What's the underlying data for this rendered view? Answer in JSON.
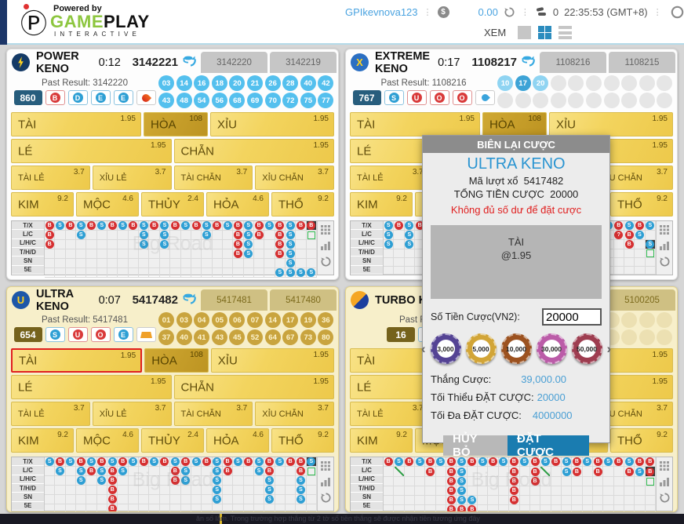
{
  "topbar": {
    "powered_by": "Powered by",
    "brand_game": "GAME",
    "brand_play": "PLAY",
    "brand_sub": "INTERACTIVE",
    "logo_glyph": "Ⓟ",
    "username": "GPIkevnova123",
    "balance": "0.00",
    "bet_count": "0",
    "time": "22:35:53 (GMT+8)",
    "view_label": "XEM"
  },
  "marquee": "ăn số lắm. Trong trường hợp thắng từ 2 tờ số tiền thắng sẽ được nhận tiền tương ứng đây",
  "road_labels": [
    "T/X",
    "L/C",
    "L/H/C",
    "T/H/D",
    "SN",
    "5E"
  ],
  "road_watermark": "Big Road",
  "bet_labels": {
    "tai": "TÀI",
    "hoa": "HÒA",
    "xiu": "XỈU",
    "le": "LÉ",
    "chan": "CHẴN",
    "tai_le": "TÀI LẺ",
    "xiu_le": "XỈU LẺ",
    "tai_chan": "TÀI CHẴN",
    "xiu_chan": "XỈU CHẴN",
    "kim": "KIM",
    "moc": "MỘC",
    "thuy": "THỦY",
    "hoa_e": "HỎA",
    "tho": "THỔ"
  },
  "odds": {
    "tai": "1.95",
    "hoa": "108",
    "xiu": "1.95",
    "le": "1.95",
    "chan": "1.95",
    "tai_le": "3.7",
    "xiu_le": "3.7",
    "tai_chan": "3.7",
    "xiu_chan": "3.7",
    "kim": "9.2",
    "moc": "4.6",
    "thuy": "2.4",
    "hoa_e": "4.6",
    "tho": "9.2"
  },
  "panels": [
    {
      "key": "power-keno",
      "name": "POWER KENO",
      "icon": {
        "bg": "#143a66",
        "kind": "bolt",
        "text": ""
      },
      "timer": "0:12",
      "current": "3142221",
      "tabs": [
        "3142220",
        "3142219"
      ],
      "past_label": "Past Result:",
      "past_result": "3142220",
      "score": "860",
      "score_bg": "#275d7d",
      "badges": [
        {
          "t": "B",
          "c": "red"
        },
        {
          "t": "D",
          "c": "blue"
        },
        {
          "t": "E",
          "c": "blue"
        },
        {
          "t": "E",
          "c": "blue"
        }
      ],
      "element": "flame",
      "gold": false,
      "selected_bet": "",
      "numbers": [
        {
          "v": "03",
          "k": "blue"
        },
        {
          "v": "14",
          "k": "blue"
        },
        {
          "v": "16",
          "k": "blue"
        },
        {
          "v": "18",
          "k": "blue"
        },
        {
          "v": "20",
          "k": "blue"
        },
        {
          "v": "21",
          "k": "blue"
        },
        {
          "v": "26",
          "k": "blue"
        },
        {
          "v": "28",
          "k": "blue"
        },
        {
          "v": "40",
          "k": "blue"
        },
        {
          "v": "42",
          "k": "blue"
        },
        {
          "v": "43",
          "k": "blue"
        },
        {
          "v": "48",
          "k": "blue"
        },
        {
          "v": "54",
          "k": "blue"
        },
        {
          "v": "56",
          "k": "blue"
        },
        {
          "v": "68",
          "k": "blue"
        },
        {
          "v": "69",
          "k": "blue"
        },
        {
          "v": "70",
          "k": "blue"
        },
        {
          "v": "72",
          "k": "blue"
        },
        {
          "v": "75",
          "k": "blue"
        },
        {
          "v": "77",
          "k": "blue"
        }
      ],
      "road": [
        [
          "B",
          "S",
          "B",
          "S",
          "B",
          "S",
          "B",
          "S",
          "B",
          "S",
          "B",
          "S",
          "B",
          "S",
          "B",
          "S",
          "B",
          "S",
          "B",
          "S",
          "B",
          "S",
          "B",
          "S",
          "B",
          "b"
        ],
        [
          "B",
          "",
          "",
          "S",
          "",
          "",
          "",
          "",
          "",
          "S",
          "",
          "S",
          "",
          "",
          "",
          "S",
          "",
          "",
          "B",
          "S",
          "B",
          "",
          "B",
          "S",
          "",
          "g"
        ],
        [
          "B",
          "",
          "",
          "",
          "",
          "",
          "",
          "",
          "",
          "S",
          "",
          "S",
          "",
          "",
          "",
          "",
          "",
          "",
          "B",
          "S",
          "",
          "",
          "B",
          "S",
          "",
          ""
        ],
        [
          "",
          "",
          "",
          "",
          "",
          "",
          "",
          "",
          "",
          "",
          "",
          "",
          "",
          "",
          "",
          "",
          "",
          "",
          "B",
          "S",
          "",
          "",
          "B",
          "S",
          "",
          ""
        ],
        [
          "",
          "",
          "",
          "",
          "",
          "",
          "",
          "",
          "",
          "",
          "",
          "",
          "",
          "",
          "",
          "",
          "",
          "",
          "",
          "",
          "",
          "",
          "",
          "S",
          "",
          ""
        ],
        [
          "",
          "",
          "",
          "",
          "",
          "",
          "",
          "",
          "",
          "",
          "",
          "",
          "",
          "",
          "",
          "",
          "",
          "",
          "",
          "",
          "",
          "",
          "S",
          "S",
          "S",
          "S"
        ]
      ]
    },
    {
      "key": "extreme-keno",
      "name": "EXTREME KENO",
      "icon": {
        "bg": "#2b6fc2",
        "kind": "text",
        "text": "X"
      },
      "timer": "0:17",
      "current": "1108217",
      "tabs": [
        "1108216",
        "1108215"
      ],
      "past_label": "Past Result:",
      "past_result": "1108216",
      "score": "767",
      "score_bg": "#275d7d",
      "badges": [
        {
          "t": "S",
          "c": "blue"
        },
        {
          "t": "U",
          "c": "red"
        },
        {
          "t": "O",
          "c": "red"
        },
        {
          "t": "O",
          "c": "red"
        }
      ],
      "element": "droplet",
      "gold": false,
      "selected_bet": "",
      "numbers": [
        {
          "v": "10",
          "k": "blueL"
        },
        {
          "v": "17",
          "k": "blueD"
        },
        {
          "v": "20",
          "k": "blueL"
        },
        {
          "v": "",
          "k": "emptyGray"
        },
        {
          "v": "",
          "k": "emptyGray"
        },
        {
          "v": "",
          "k": "emptyGray"
        },
        {
          "v": "",
          "k": "emptyGray"
        },
        {
          "v": "",
          "k": "emptyGray"
        },
        {
          "v": "",
          "k": "emptyGray"
        },
        {
          "v": "",
          "k": "emptyGray"
        },
        {
          "v": "",
          "k": "emptyGray"
        },
        {
          "v": "",
          "k": "emptyGray"
        },
        {
          "v": "",
          "k": "emptyGray"
        },
        {
          "v": "",
          "k": "emptyGray"
        },
        {
          "v": "",
          "k": "emptyGray"
        },
        {
          "v": "",
          "k": "emptyGray"
        },
        {
          "v": "",
          "k": "emptyGray"
        },
        {
          "v": "",
          "k": "emptyGray"
        },
        {
          "v": "",
          "k": "emptyGray"
        },
        {
          "v": "",
          "k": "emptyGray"
        }
      ],
      "road": [
        [
          "S",
          "B",
          "S",
          "B",
          "S",
          "B",
          "S",
          "B",
          "S",
          "B",
          "S",
          "B",
          "S",
          "B",
          "S",
          "B",
          "S",
          "B",
          "S",
          "B",
          "S",
          "S",
          "B",
          "S",
          "B",
          "S"
        ],
        [
          "S",
          "",
          "S",
          "",
          "",
          "",
          "",
          "",
          "",
          "",
          "",
          "",
          "",
          "",
          "",
          "",
          "",
          "",
          "",
          "",
          "",
          "",
          "?",
          "B",
          "S",
          ""
        ],
        [
          "S",
          "",
          "S",
          "",
          "",
          "",
          "",
          "",
          "",
          "",
          "",
          "",
          "",
          "",
          "",
          "",
          "",
          "",
          "",
          "",
          "",
          "",
          "",
          "B",
          "",
          "s"
        ],
        [
          "",
          "",
          "",
          "",
          "",
          "",
          "",
          "",
          "",
          "",
          "",
          "",
          "",
          "",
          "",
          "",
          "",
          "",
          "",
          "",
          "",
          "",
          "",
          "",
          "",
          "g"
        ],
        [
          "",
          "",
          "",
          "",
          "",
          "",
          "",
          "",
          "",
          "",
          "",
          "",
          "",
          "",
          "",
          "",
          "",
          "",
          "",
          "",
          "",
          "",
          "",
          "",
          "",
          ""
        ],
        [
          "",
          "",
          "",
          "",
          "",
          "",
          "",
          "",
          "",
          "",
          "",
          "",
          "",
          "",
          "",
          "",
          "",
          "",
          "",
          "",
          "",
          "",
          "",
          "",
          "",
          ""
        ]
      ]
    },
    {
      "key": "ultra-keno",
      "name": "ULTRA KENO",
      "icon": {
        "bg": "#1d57a8",
        "kind": "text",
        "text": "U"
      },
      "timer": "0:07",
      "current": "5417482",
      "tabs": [
        "5417481",
        "5417480"
      ],
      "past_label": "Past Result:",
      "past_result": "5417481",
      "score": "654",
      "score_bg": "#75621c",
      "badges": [
        {
          "t": "S",
          "c": "blue"
        },
        {
          "t": "U",
          "c": "red"
        },
        {
          "t": "O",
          "c": "red"
        },
        {
          "t": "E",
          "c": "blue"
        }
      ],
      "element": "ingot",
      "gold": true,
      "selected_bet": "tai",
      "numbers": [
        {
          "v": "01",
          "k": "goldn"
        },
        {
          "v": "03",
          "k": "goldn"
        },
        {
          "v": "04",
          "k": "goldn"
        },
        {
          "v": "05",
          "k": "goldn"
        },
        {
          "v": "06",
          "k": "goldn"
        },
        {
          "v": "07",
          "k": "goldn"
        },
        {
          "v": "14",
          "k": "goldn"
        },
        {
          "v": "17",
          "k": "goldn"
        },
        {
          "v": "19",
          "k": "goldn"
        },
        {
          "v": "36",
          "k": "goldn"
        },
        {
          "v": "37",
          "k": "goldn"
        },
        {
          "v": "40",
          "k": "goldn"
        },
        {
          "v": "41",
          "k": "goldn"
        },
        {
          "v": "43",
          "k": "goldn"
        },
        {
          "v": "45",
          "k": "goldn"
        },
        {
          "v": "52",
          "k": "goldn"
        },
        {
          "v": "64",
          "k": "goldn"
        },
        {
          "v": "67",
          "k": "goldn"
        },
        {
          "v": "73",
          "k": "goldn"
        },
        {
          "v": "80",
          "k": "goldn"
        }
      ],
      "road": [
        [
          "S",
          "B",
          "S",
          "B",
          "S",
          "B",
          "S",
          "B",
          "S",
          "B",
          "S",
          "B",
          "S",
          "B",
          "S",
          "B",
          "S",
          "B",
          "S",
          "B",
          "S",
          "B",
          "S",
          "B",
          "B",
          "s"
        ],
        [
          "",
          "S",
          "",
          "S",
          "B",
          "S",
          "B",
          "S",
          "",
          "",
          "",
          "",
          "B",
          "S",
          "",
          "",
          "S",
          "B",
          "",
          "",
          "S",
          "B",
          "",
          "",
          "B",
          "g"
        ],
        [
          "",
          "",
          "",
          "S",
          "",
          "S",
          "B",
          "",
          "",
          "",
          "",
          "",
          "B",
          "S",
          "",
          "",
          "S",
          "",
          "",
          "",
          "",
          "S",
          "",
          "",
          "S",
          ""
        ],
        [
          "",
          "",
          "",
          "",
          "",
          "",
          "B",
          "",
          "",
          "",
          "",
          "",
          "",
          "",
          "",
          "",
          "S",
          "",
          "",
          "",
          "",
          "S",
          "",
          "",
          "S",
          ""
        ],
        [
          "",
          "",
          "",
          "",
          "",
          "",
          "B",
          "",
          "",
          "",
          "",
          "",
          "",
          "",
          "",
          "",
          "S",
          "",
          "",
          "",
          "",
          "S",
          "",
          "",
          "S",
          ""
        ],
        [
          "",
          "",
          "",
          "",
          "",
          "",
          "B",
          "",
          "",
          "",
          "",
          "",
          "",
          "",
          "",
          "",
          "",
          "",
          "",
          "",
          "",
          "",
          "",
          "",
          "",
          ""
        ]
      ]
    },
    {
      "key": "turbo-keno",
      "name": "TURBO KENO",
      "icon": {
        "bg": "#e87f1c",
        "kind": "swirl",
        "text": ""
      },
      "timer": "",
      "current": "",
      "tabs": [
        "",
        "5100205"
      ],
      "past_label": "Past Result:",
      "past_result": "",
      "score": "16",
      "score_bg": "#75621c",
      "badges": [
        {
          "t": "S",
          "c": "blue"
        },
        {
          "t": "D",
          "c": "blue"
        }
      ],
      "element": "",
      "gold": true,
      "selected_bet": "",
      "numbers": [
        {
          "v": "",
          "k": "emptyGold"
        },
        {
          "v": "",
          "k": "emptyGold"
        },
        {
          "v": "",
          "k": "emptyGold"
        },
        {
          "v": "",
          "k": "emptyGold"
        },
        {
          "v": "",
          "k": "emptyGold"
        },
        {
          "v": "",
          "k": "emptyGold"
        },
        {
          "v": "",
          "k": "emptyGold"
        },
        {
          "v": "",
          "k": "emptyGold"
        },
        {
          "v": "",
          "k": "emptyGold"
        },
        {
          "v": "",
          "k": "emptyGold"
        },
        {
          "v": "",
          "k": "emptyGold"
        },
        {
          "v": "",
          "k": "emptyGold"
        },
        {
          "v": "",
          "k": "emptyGold"
        },
        {
          "v": "",
          "k": "emptyGold"
        },
        {
          "v": "",
          "k": "emptyGold"
        },
        {
          "v": "",
          "k": "emptyGold"
        },
        {
          "v": "",
          "k": "emptyGold"
        },
        {
          "v": "",
          "k": "emptyGold"
        },
        {
          "v": "",
          "k": "emptyGold"
        },
        {
          "v": "",
          "k": "emptyGold"
        }
      ],
      "road": [
        [
          "B",
          "S",
          "B",
          "S",
          "B",
          "S",
          "B",
          "S",
          "B",
          "S",
          "B",
          "S",
          "B",
          "S",
          "B",
          "S",
          "B",
          "S",
          "B",
          "S",
          "B",
          "S",
          "B",
          "S",
          "B",
          "B"
        ],
        [
          "",
          "/",
          "",
          "",
          "B",
          "",
          "B",
          "S",
          "",
          "",
          "",
          "",
          "B",
          "",
          "B",
          "/",
          "",
          "S",
          "B",
          "",
          "B",
          "",
          "",
          "B",
          "S",
          "b"
        ],
        [
          "",
          "",
          "",
          "",
          "",
          "",
          "B",
          "S",
          "",
          "",
          "",
          "",
          "B",
          "",
          "B",
          "",
          "",
          "",
          "",
          "",
          "",
          "",
          "",
          "",
          "",
          "g"
        ],
        [
          "",
          "",
          "",
          "",
          "",
          "",
          "B",
          "S",
          "",
          "",
          "",
          "",
          "B",
          "",
          "",
          "",
          "",
          "",
          "",
          "",
          "",
          "",
          "",
          "",
          "",
          ""
        ],
        [
          "",
          "",
          "",
          "",
          "",
          "",
          "B",
          "S",
          "S",
          "",
          "",
          "",
          "B",
          "",
          "",
          "",
          "",
          "",
          "",
          "",
          "",
          "",
          "",
          "",
          "",
          ""
        ],
        [
          "",
          "",
          "",
          "",
          "",
          "",
          "B",
          "B",
          "B",
          "",
          "",
          "",
          "",
          "",
          "",
          "",
          "",
          "",
          "",
          "",
          "",
          "",
          "",
          "",
          "",
          ""
        ]
      ]
    }
  ],
  "dialog": {
    "title": "BIÊN LẠI CƯỢC",
    "game": "ULTRA KENO",
    "round_label": "Mã lượt xổ",
    "round": "5417482",
    "total_label": "TỔNG TIỀN CƯỢC",
    "total": "20000",
    "warning": "Không đủ số dư để đặt cược",
    "bet_name": "TÀI",
    "bet_odds": "@1.95",
    "amount_label": "Số Tiền Cược(VN2):",
    "amount": "20000",
    "prev": "‹",
    "next": "›",
    "chips": [
      {
        "label": "3,000",
        "color": "#544394"
      },
      {
        "label": "5,000",
        "color": "#d2a537"
      },
      {
        "label": "10,000",
        "color": "#9c5220"
      },
      {
        "label": "30,000",
        "color": "#bb5ca8"
      },
      {
        "label": "50,000",
        "color": "#9e3d50"
      }
    ],
    "win_label": "Thắng Cược:",
    "win": "39,000.00",
    "min_label": "Tối Thiểu ĐẶT CƯỢC:",
    "min": "20000",
    "max_label": "Tối Đa ĐẶT CƯỢC:",
    "max": "4000000",
    "cancel": "HỦY BỎ",
    "confirm": "ĐẶT CƯỢC"
  }
}
